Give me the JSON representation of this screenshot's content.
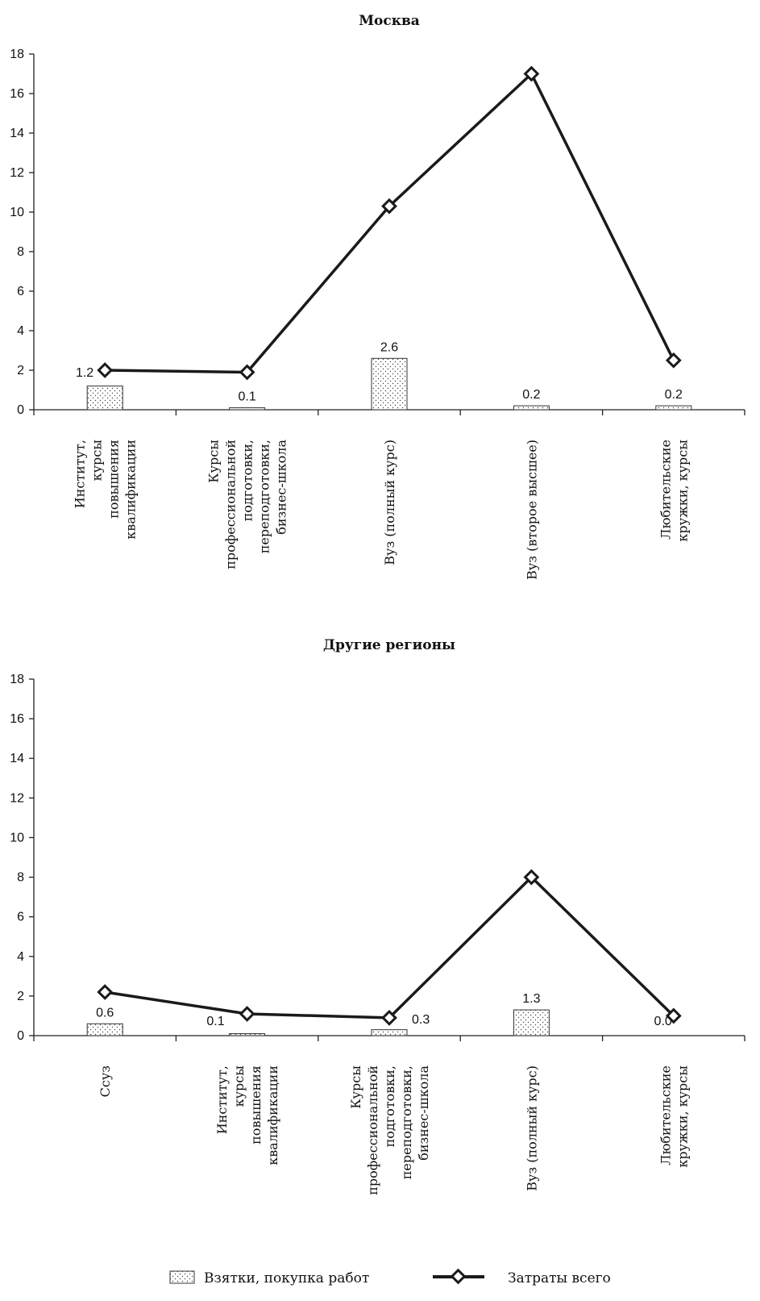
{
  "chart_data": [
    {
      "type": "bar+line",
      "title": "Москва",
      "ylim": [
        0,
        18
      ],
      "yticks": [
        0,
        2,
        4,
        6,
        8,
        10,
        12,
        14,
        16,
        18
      ],
      "categories": [
        [
          "Институт,",
          "курсы",
          "повышения",
          "квалификации"
        ],
        [
          "Курсы",
          "профессиональной",
          "подготовки,",
          "переподготовки,",
          "бизнес-школа"
        ],
        [
          "Вуз (полный курс)"
        ],
        [
          "Вуз (второе высшее)"
        ],
        [
          "Любительские",
          "кружки, курсы"
        ]
      ],
      "series": [
        {
          "name": "Взятки, покупка работ",
          "kind": "bar",
          "values": [
            1.2,
            0.1,
            2.6,
            0.2,
            0.2
          ],
          "labels": [
            "1.2",
            "0.1",
            "2.6",
            "0.2",
            "0.2"
          ]
        },
        {
          "name": "Затраты всего",
          "kind": "line",
          "values": [
            2.0,
            1.9,
            10.3,
            17.0,
            2.5
          ]
        }
      ]
    },
    {
      "type": "bar+line",
      "title": "Другие регионы",
      "ylim": [
        0,
        18
      ],
      "yticks": [
        0,
        2,
        4,
        6,
        8,
        10,
        12,
        14,
        16,
        18
      ],
      "categories": [
        [
          "Ссуз"
        ],
        [
          "Институт,",
          "курсы",
          "повышения",
          "квалификации"
        ],
        [
          "Курсы",
          "профессиональной",
          "подготовки,",
          "переподготовки,",
          "бизнес-школа"
        ],
        [
          "Вуз (полный курс)"
        ],
        [
          "Любительские",
          "кружки, курсы"
        ]
      ],
      "series": [
        {
          "name": "Взятки, покупка работ",
          "kind": "bar",
          "values": [
            0.6,
            0.1,
            0.3,
            1.3,
            0.0
          ],
          "labels": [
            "0.6",
            "0.1",
            "0.3",
            "1.3",
            "0.0"
          ]
        },
        {
          "name": "Затраты всего",
          "kind": "line",
          "values": [
            2.2,
            1.1,
            0.9,
            8.0,
            1.0
          ]
        }
      ]
    }
  ],
  "legend": {
    "bar_label": "Взятки, покупка работ",
    "line_label": "Затраты всего"
  }
}
